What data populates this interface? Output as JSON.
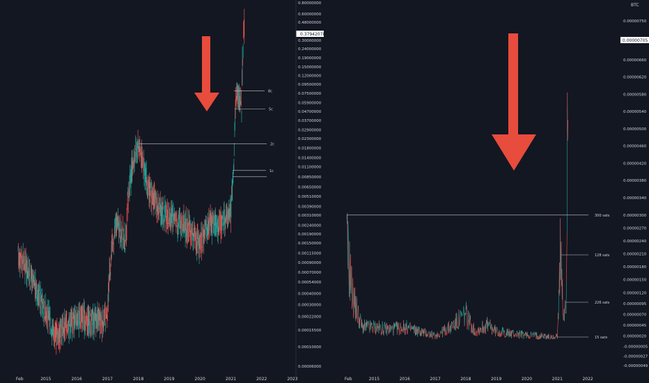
{
  "chart_data": [
    {
      "type": "candlestick",
      "scale": "log",
      "price_axis": [
        "0.80000000",
        "0.60000000",
        "0.48000000",
        "0.30000000",
        "0.24000000",
        "0.19000000",
        "0.15000000",
        "0.12000000",
        "0.09500000",
        "0.07500000",
        "0.05900000",
        "0.04700000",
        "0.03700000",
        "0.02900000",
        "0.02300000",
        "0.01800000",
        "0.01400000",
        "0.01100000",
        "0.00850000",
        "0.00650000",
        "0.00510000",
        "0.00390000",
        "0.00310000",
        "0.00240000",
        "0.00190000",
        "0.00150000",
        "0.00115000",
        "0.00090000",
        "0.00070000",
        "0.00054000",
        "0.00040000",
        "0.00030000",
        "0.00022000",
        "0.00015500",
        "0.00010000",
        "0.00006000"
      ],
      "current_price_label": "0.37942078",
      "time_axis": [
        "Feb",
        "2015",
        "2016",
        "2017",
        "2018",
        "2019",
        "2020",
        "2021",
        "2022",
        "2023"
      ],
      "levels": [
        {
          "label": "8c",
          "value": 0.08
        },
        {
          "label": "5c",
          "value": 0.05
        },
        {
          "label": "2c",
          "value": 0.02
        },
        {
          "label": "1c",
          "value": 0.01
        }
      ],
      "series_approx": {
        "x": [
          2014.1,
          2014.3,
          2014.6,
          2015.0,
          2015.3,
          2015.6,
          2016.0,
          2016.5,
          2017.0,
          2017.3,
          2017.6,
          2018.0,
          2018.3,
          2018.7,
          2019.0,
          2019.5,
          2020.0,
          2020.3,
          2020.7,
          2021.0,
          2021.1,
          2021.2,
          2021.35,
          2021.45
        ],
        "y": [
          0.0011,
          0.0009,
          0.0005,
          0.00025,
          0.00013,
          0.00017,
          0.00022,
          0.0002,
          0.0002,
          0.0025,
          0.0015,
          0.02,
          0.006,
          0.0035,
          0.003,
          0.0025,
          0.0014,
          0.0026,
          0.0025,
          0.0034,
          0.01,
          0.085,
          0.055,
          0.48
        ]
      }
    },
    {
      "type": "line",
      "scale": "linear",
      "axis_title": "BTC",
      "price_axis": [
        "0.00000750",
        "0.00000705",
        "0.00000660",
        "0.00000620",
        "0.00000580",
        "0.00000540",
        "0.00000500",
        "0.00000460",
        "0.00000420",
        "0.00000380",
        "0.00000340",
        "0.00000300",
        "0.00000270",
        "0.00000240",
        "0.00000210",
        "0.00000180",
        "0.00000150",
        "0.00000120",
        "0.00000095",
        "0.00000070",
        "0.00000045",
        "0.00000020",
        "-0.00000005",
        "-0.00000027",
        "-0.00000049"
      ],
      "current_price_label": "0.00000705",
      "time_axis": [
        "Feb",
        "2015",
        "2016",
        "2017",
        "2018",
        "2019",
        "2020",
        "2021",
        "2022"
      ],
      "levels": [
        {
          "label": "300 sats",
          "value": 3e-06
        },
        {
          "label": "128 sats",
          "value": 1.28e-06
        },
        {
          "label": "226 sats",
          "value": 2.26e-06
        },
        {
          "label": "15 sats",
          "value": 1.5e-07
        }
      ],
      "series_approx": {
        "x": [
          2014.1,
          2014.3,
          2014.6,
          2015.0,
          2015.5,
          2016.0,
          2016.5,
          2017.0,
          2017.5,
          2018.0,
          2018.3,
          2018.7,
          2019.0,
          2019.5,
          2020.0,
          2020.5,
          2020.9,
          2021.0,
          2021.1,
          2021.2,
          2021.3,
          2021.35
        ],
        "y": [
          2.3e-06,
          1.1e-06,
          4e-07,
          4e-07,
          3.5e-07,
          4e-07,
          3e-07,
          2e-07,
          4e-07,
          7e-07,
          3e-07,
          4.5e-07,
          3e-07,
          2.5e-07,
          2.2e-07,
          2e-07,
          1.5e-07,
          2e-07,
          2.1e-06,
          6e-07,
          1.2e-06,
          7.7e-06
        ]
      }
    }
  ],
  "annotations": {
    "arrow_color": "#e74c3c"
  },
  "colors": {
    "background": "#131722",
    "up": "#26a69a",
    "down": "#ef5350",
    "text": "#d1d4dc",
    "guide": "#c8c8c8"
  }
}
